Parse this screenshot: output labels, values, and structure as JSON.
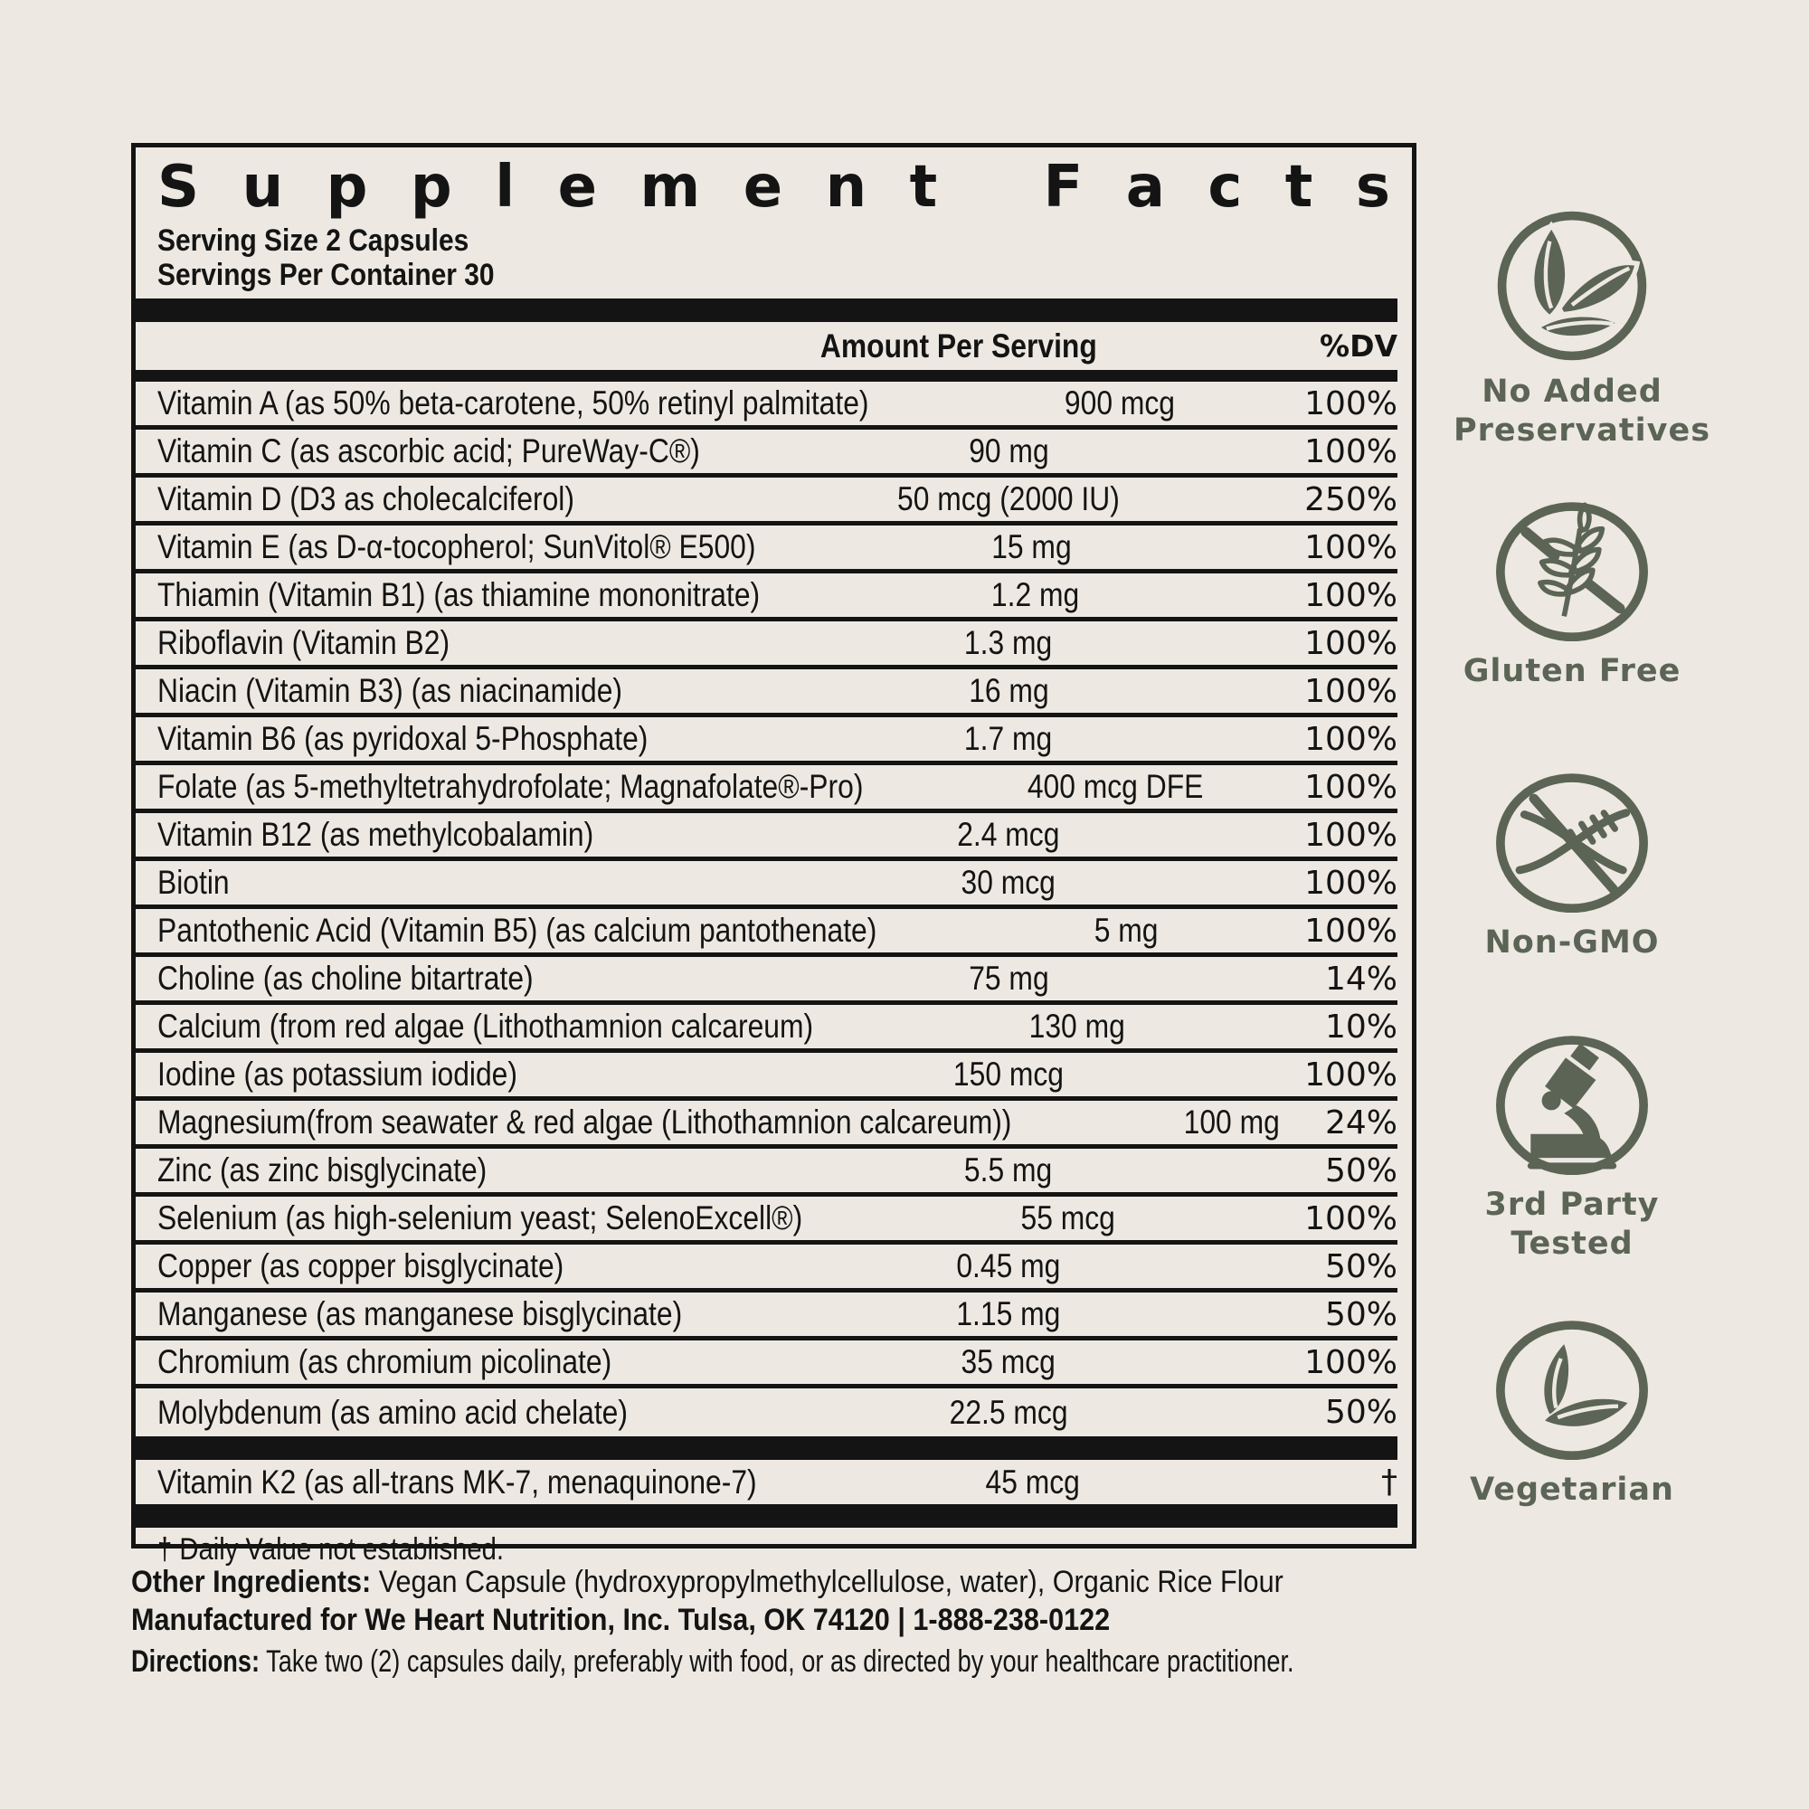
{
  "colors": {
    "background": "#EDE9E2",
    "ink": "#141414",
    "accent_green": "#5B6455"
  },
  "panel": {
    "title": "Supplement Facts",
    "serving_size": "Serving Size 2 Capsules",
    "servings_per_container": "Servings Per Container 30",
    "col_amount": "Amount Per Serving",
    "col_dv": "%DV",
    "rows": [
      {
        "name": "Vitamin A (as 50% beta-carotene, 50% retinyl palmitate)",
        "amount": "900 mcg",
        "dv": "100%"
      },
      {
        "name": "Vitamin C  (as ascorbic acid; PureWay-C®)",
        "amount": "90 mg",
        "dv": "100%"
      },
      {
        "name": "Vitamin D (D3 as cholecalciferol)",
        "amount": "50 mcg (2000 IU)",
        "dv": "250%"
      },
      {
        "name": "Vitamin E (as D-α-tocopherol; SunVitol® E500)",
        "amount": "15 mg",
        "dv": "100%"
      },
      {
        "name": "Thiamin (Vitamin B1) (as thiamine mononitrate)",
        "amount": "1.2 mg",
        "dv": "100%"
      },
      {
        "name": "Riboflavin (Vitamin B2)",
        "amount": "1.3 mg",
        "dv": "100%"
      },
      {
        "name": "Niacin (Vitamin B3) (as niacinamide)",
        "amount": "16 mg",
        "dv": "100%"
      },
      {
        "name": "Vitamin B6 (as pyridoxal 5-Phosphate)",
        "amount": "1.7 mg",
        "dv": "100%"
      },
      {
        "name": "Folate  (as 5-methyltetrahydrofolate; Magnafolate®-Pro)",
        "amount": "400 mcg DFE",
        "dv": "100%"
      },
      {
        "name": "Vitamin B12  (as methylcobalamin)",
        "amount": "2.4 mcg",
        "dv": "100%"
      },
      {
        "name": "Biotin",
        "amount": "30 mcg",
        "dv": "100%"
      },
      {
        "name": "Pantothenic Acid (Vitamin B5) (as calcium pantothenate)",
        "amount": "5 mg",
        "dv": "100%"
      },
      {
        "name": "Choline (as choline bitartrate)",
        "amount": "75 mg",
        "dv": "14%"
      },
      {
        "name": "Calcium (from red algae (Lithothamnion calcareum)",
        "amount": "130 mg",
        "dv": "10%"
      },
      {
        "name": "Iodine (as potassium iodide)",
        "amount": "150 mcg",
        "dv": "100%"
      },
      {
        "name": "Magnesium(from seawater & red algae (Lithothamnion calcareum))",
        "amount": "100 mg",
        "dv": "24%"
      },
      {
        "name": "Zinc (as zinc bisglycinate)",
        "amount": "5.5 mg",
        "dv": "50%"
      },
      {
        "name": "Selenium (as high-selenium yeast; SelenoExcell®)",
        "amount": "55 mcg",
        "dv": "100%"
      },
      {
        "name": "Copper (as copper bisglycinate)",
        "amount": "0.45 mg",
        "dv": "50%"
      },
      {
        "name": "Manganese (as manganese bisglycinate)",
        "amount": "1.15 mg",
        "dv": "50%"
      },
      {
        "name": "Chromium (as chromium picolinate)",
        "amount": "35 mcg",
        "dv": "100%"
      },
      {
        "name": "Molybdenum (as amino acid chelate)",
        "amount": "22.5 mcg",
        "dv": "50%"
      }
    ],
    "k2_row": {
      "name": "Vitamin K2 (as all-trans MK-7, menaquinone-7)",
      "amount": "45 mcg",
      "dv": "†"
    },
    "footnote": "† Daily Value not established."
  },
  "footer": {
    "other_ingredients_label": "Other Ingredients:",
    "other_ingredients_text": " Vegan Capsule (hydroxypropylmethylcellulose, water), Organic Rice Flour",
    "manufactured": "Manufactured for We Heart Nutrition, Inc. Tulsa, OK 74120 | 1-888-238-0122",
    "directions_label": "Directions:",
    "directions_text": " Take two (2) capsules daily, preferably with food, or as directed by your healthcare practitioner."
  },
  "badges": [
    {
      "label": "No Added Preservatives"
    },
    {
      "label": "Gluten Free"
    },
    {
      "label": "Non-GMO"
    },
    {
      "label": "3rd Party Tested"
    },
    {
      "label": "Vegetarian"
    }
  ]
}
